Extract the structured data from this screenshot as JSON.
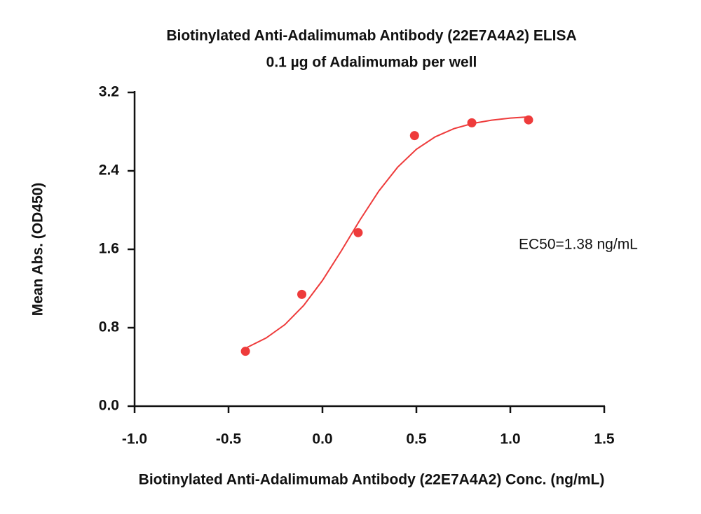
{
  "chart_data": {
    "type": "scatter",
    "title": "Biotinylated Anti-Adalimumab Antibody (22E7A4A2) ELISA",
    "subtitle": "0.1 µg of Adalimumab per well",
    "xlabel": "Biotinylated Anti-Adalimumab Antibody (22E7A4A2) Conc. (ng/mL)",
    "ylabel": "Mean Abs. (OD450)",
    "annotation": "EC50=1.38 ng/mL",
    "xlim": [
      -1.0,
      1.5
    ],
    "ylim": [
      0,
      3.2
    ],
    "xticks": [
      {
        "value": -1.0,
        "label": "-1.0"
      },
      -0.5,
      {
        "value": 0,
        "label": "0.0"
      },
      0.5,
      {
        "value": 1.0,
        "label": "1.0"
      },
      1.5
    ],
    "yticks": [
      {
        "value": 0,
        "label": "0.0"
      },
      0.8,
      1.6,
      2.4,
      3.2
    ],
    "series": [
      {
        "mode": "markers",
        "color": "#ee3b3b",
        "x": [
          -0.41,
          -0.11,
          0.19,
          0.49,
          0.795,
          1.097
        ],
        "y": [
          0.56,
          1.14,
          1.77,
          2.76,
          2.89,
          2.92
        ]
      },
      {
        "mode": "line",
        "color": "#ee3b3b",
        "x": [
          -0.4,
          -0.3,
          -0.2,
          -0.1,
          0,
          0.1,
          0.2,
          0.3,
          0.4,
          0.5,
          0.6,
          0.7,
          0.8,
          0.9,
          1.0,
          1.1
        ],
        "y": [
          0.6,
          0.695,
          0.832,
          1.027,
          1.282,
          1.583,
          1.9,
          2.194,
          2.437,
          2.62,
          2.747,
          2.831,
          2.884,
          2.917,
          2.938,
          2.951
        ]
      }
    ]
  }
}
